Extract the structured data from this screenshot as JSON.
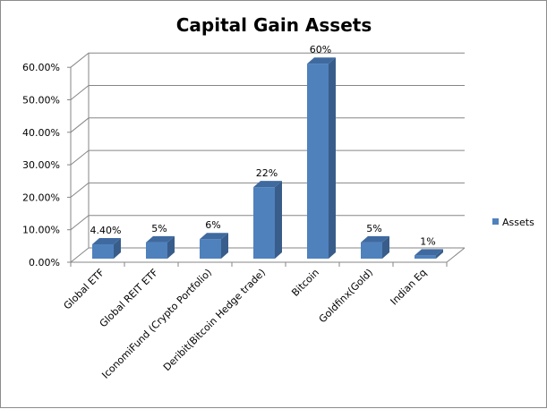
{
  "chart_data": {
    "type": "bar",
    "title": "Capital Gain Assets",
    "categories": [
      "Global ETF",
      "Global REIT  ETF",
      "IconomiFund (Crypto Portfolio)",
      "Deribit(Bitcoin Hedge trade)",
      "Bitcoin",
      "Goldfinx(Gold)",
      "Indian Eq"
    ],
    "series": [
      {
        "name": "Assets",
        "values": [
          4.4,
          5,
          6,
          22,
          60,
          5,
          1
        ],
        "data_labels": [
          "4.40%",
          "5%",
          "6%",
          "22%",
          "60%",
          "5%",
          "1%"
        ],
        "color": "#4f81bd"
      }
    ],
    "ylim": [
      0,
      60
    ],
    "yticks": [
      "0.00%",
      "10.00%",
      "20.00%",
      "30.00%",
      "40.00%",
      "50.00%",
      "60.00%"
    ],
    "grid": true,
    "style": "3d-column",
    "legend": "right"
  }
}
